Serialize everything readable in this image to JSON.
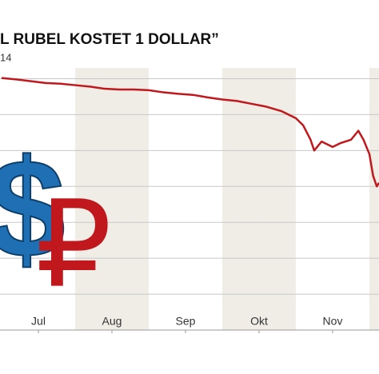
{
  "chart_data": {
    "type": "line",
    "title": "L RUBEL KOSTET 1 DOLLAR”",
    "subtitle": "14",
    "symbols": [
      "$",
      "₽"
    ],
    "xlim": [
      6,
      11.13
    ],
    "xticks": [
      {
        "value": 6.5,
        "label": "Jul"
      },
      {
        "value": 7.5,
        "label": "Aug"
      },
      {
        "value": 8.5,
        "label": "Sep"
      },
      {
        "value": 9.5,
        "label": "Okt"
      },
      {
        "value": 10.5,
        "label": "Nov"
      }
    ],
    "ylim": [
      0,
      7.3
    ],
    "yticks": [
      1,
      2,
      3,
      4,
      5,
      6,
      7
    ],
    "grid": true,
    "series": [
      {
        "color": "#c0181c",
        "x": [
          6.0,
          6.2,
          6.4,
          6.6,
          6.8,
          7.0,
          7.2,
          7.4,
          7.6,
          7.8,
          8.0,
          8.2,
          8.4,
          8.6,
          8.8,
          9.0,
          9.2,
          9.4,
          9.6,
          9.8,
          10.0,
          10.1,
          10.2,
          10.25,
          10.35,
          10.5,
          10.6,
          10.75,
          10.85,
          10.92,
          11.0,
          11.05,
          11.1,
          11.13
        ],
        "values": [
          7.02,
          6.98,
          6.93,
          6.88,
          6.86,
          6.82,
          6.78,
          6.72,
          6.7,
          6.7,
          6.68,
          6.62,
          6.58,
          6.55,
          6.48,
          6.42,
          6.38,
          6.3,
          6.22,
          6.1,
          5.9,
          5.7,
          5.3,
          5.0,
          5.25,
          5.1,
          5.2,
          5.3,
          5.55,
          5.3,
          4.9,
          4.3,
          4.0,
          4.1
        ]
      }
    ]
  }
}
